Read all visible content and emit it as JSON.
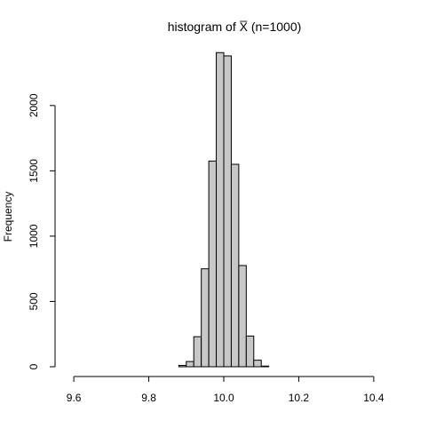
{
  "chart_data": {
    "type": "bar",
    "title": "histogram of X̅ (n=1000)",
    "xlabel": "",
    "ylabel": "Frequency",
    "xlim": [
      9.55,
      10.45
    ],
    "ylim": [
      0,
      2400
    ],
    "xticks": [
      9.6,
      9.8,
      10.0,
      10.2,
      10.4
    ],
    "xtick_labels": [
      "9.6",
      "9.8",
      "10.0",
      "10.2",
      "10.4"
    ],
    "yticks": [
      0,
      500,
      1000,
      1500,
      2000
    ],
    "ytick_labels": [
      "0",
      "500",
      "1000",
      "1500",
      "2000"
    ],
    "bin_width": 0.02,
    "bins": [
      {
        "x0": 9.88,
        "x1": 9.9,
        "value": 10
      },
      {
        "x0": 9.9,
        "x1": 9.92,
        "value": 40
      },
      {
        "x0": 9.92,
        "x1": 9.94,
        "value": 230
      },
      {
        "x0": 9.94,
        "x1": 9.96,
        "value": 750
      },
      {
        "x0": 9.96,
        "x1": 9.98,
        "value": 1575
      },
      {
        "x0": 9.98,
        "x1": 10.0,
        "value": 2405
      },
      {
        "x0": 10.0,
        "x1": 10.02,
        "value": 2380
      },
      {
        "x0": 10.02,
        "x1": 10.04,
        "value": 1550
      },
      {
        "x0": 10.04,
        "x1": 10.06,
        "value": 775
      },
      {
        "x0": 10.06,
        "x1": 10.08,
        "value": 235
      },
      {
        "x0": 10.08,
        "x1": 10.1,
        "value": 50
      },
      {
        "x0": 10.1,
        "x1": 10.12,
        "value": 5
      }
    ],
    "colors": {
      "bar_fill": "#c8c8c8",
      "bar_stroke": "#000000"
    },
    "grid": false,
    "legend": "none"
  }
}
